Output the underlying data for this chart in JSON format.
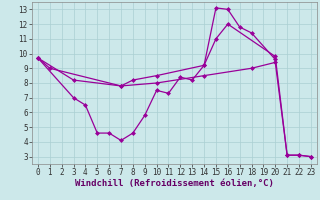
{
  "bg_color": "#cce8ea",
  "grid_color": "#aacfd2",
  "line_color": "#990099",
  "xlabel": "Windchill (Refroidissement éolien,°C)",
  "xlim": [
    -0.5,
    23.5
  ],
  "ylim": [
    2.5,
    13.5
  ],
  "xticks": [
    0,
    1,
    2,
    3,
    4,
    5,
    6,
    7,
    8,
    9,
    10,
    11,
    12,
    13,
    14,
    15,
    16,
    17,
    18,
    19,
    20,
    21,
    22,
    23
  ],
  "yticks": [
    3,
    4,
    5,
    6,
    7,
    8,
    9,
    10,
    11,
    12,
    13
  ],
  "line1_x": [
    0,
    1,
    7,
    8,
    10,
    14,
    15,
    16,
    17,
    18,
    20
  ],
  "line1_y": [
    9.7,
    9.0,
    7.8,
    8.2,
    8.5,
    9.2,
    13.1,
    13.0,
    11.8,
    11.4,
    9.6
  ],
  "line2_x": [
    0,
    3,
    4,
    5,
    6,
    7,
    8,
    9,
    10,
    11,
    12,
    13,
    14,
    15,
    16,
    20,
    21,
    22,
    23
  ],
  "line2_y": [
    9.7,
    7.0,
    6.5,
    4.6,
    4.6,
    4.1,
    4.6,
    5.8,
    7.5,
    7.3,
    8.4,
    8.2,
    9.2,
    11.0,
    12.0,
    9.8,
    3.1,
    3.1,
    3.0
  ],
  "line3_x": [
    0,
    3,
    7,
    10,
    14,
    18,
    20,
    21,
    22,
    23
  ],
  "line3_y": [
    9.7,
    8.2,
    7.8,
    8.0,
    8.5,
    9.0,
    9.4,
    3.1,
    3.1,
    3.0
  ],
  "marker": "D",
  "markersize": 2,
  "linewidth": 0.9,
  "tick_fontsize": 5.5,
  "xlabel_fontsize": 6.5
}
